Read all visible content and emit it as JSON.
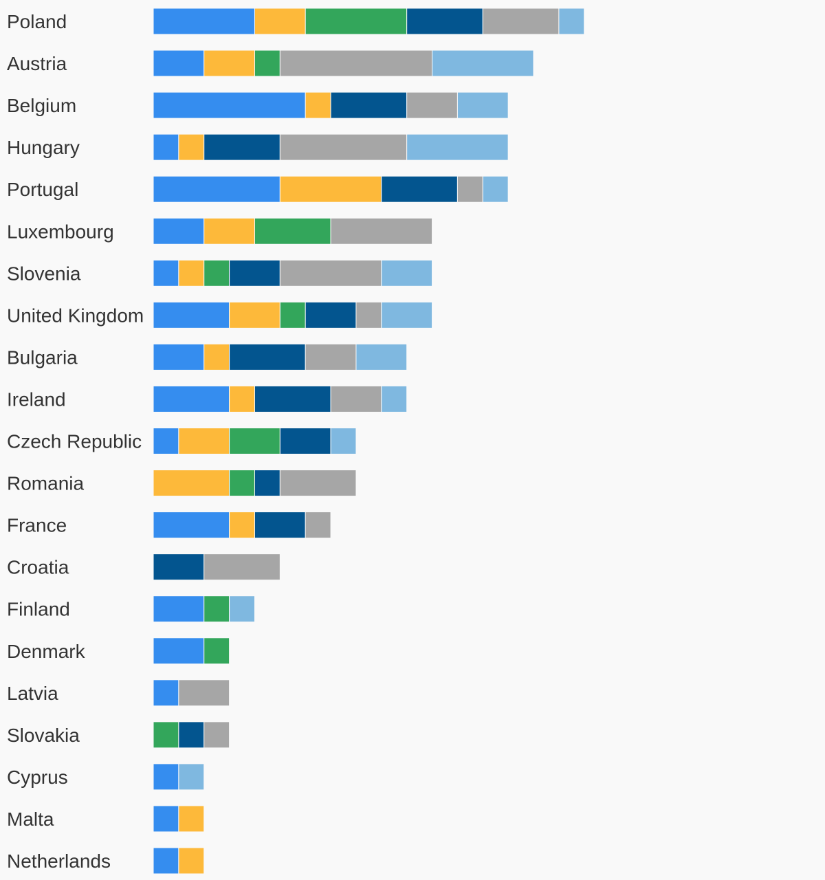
{
  "chart_data": {
    "type": "bar",
    "orientation": "horizontal",
    "stacked": true,
    "grid": false,
    "legend": "none",
    "categories": [
      "Poland",
      "Austria",
      "Belgium",
      "Hungary",
      "Portugal",
      "Luxembourg",
      "Slovenia",
      "United Kingdom",
      "Bulgaria",
      "Ireland",
      "Czech Republic",
      "Romania",
      "France",
      "Croatia",
      "Finland",
      "Denmark",
      "Latvia",
      "Slovakia",
      "Cyprus",
      "Malta",
      "Netherlands"
    ],
    "series": [
      {
        "color": "#358DEF",
        "values": [
          4,
          2,
          6,
          1,
          5,
          2,
          1,
          3,
          2,
          3,
          1,
          0,
          3,
          0,
          2,
          2,
          1,
          0,
          1,
          1,
          1
        ]
      },
      {
        "color": "#FDB93A",
        "values": [
          2,
          2,
          1,
          1,
          4,
          2,
          1,
          2,
          1,
          1,
          2,
          3,
          1,
          0,
          0,
          0,
          0,
          0,
          0,
          1,
          1
        ]
      },
      {
        "color": "#33A65B",
        "values": [
          4,
          1,
          0,
          0,
          0,
          3,
          1,
          1,
          0,
          0,
          2,
          1,
          0,
          0,
          1,
          1,
          0,
          1,
          0,
          0,
          0
        ]
      },
      {
        "color": "#03558F",
        "values": [
          3,
          0,
          3,
          3,
          3,
          0,
          2,
          2,
          3,
          3,
          2,
          1,
          2,
          2,
          0,
          0,
          0,
          1,
          0,
          0,
          0
        ]
      },
      {
        "color": "#A6A6A6",
        "values": [
          3,
          6,
          2,
          5,
          1,
          4,
          4,
          1,
          2,
          2,
          0,
          3,
          1,
          3,
          0,
          0,
          2,
          1,
          0,
          0,
          0
        ]
      },
      {
        "color": "#7FB8E0",
        "values": [
          1,
          4,
          2,
          4,
          1,
          0,
          2,
          2,
          2,
          1,
          1,
          0,
          0,
          0,
          1,
          0,
          0,
          0,
          1,
          0,
          0
        ]
      }
    ],
    "xlim": [
      0,
      26.5
    ]
  }
}
